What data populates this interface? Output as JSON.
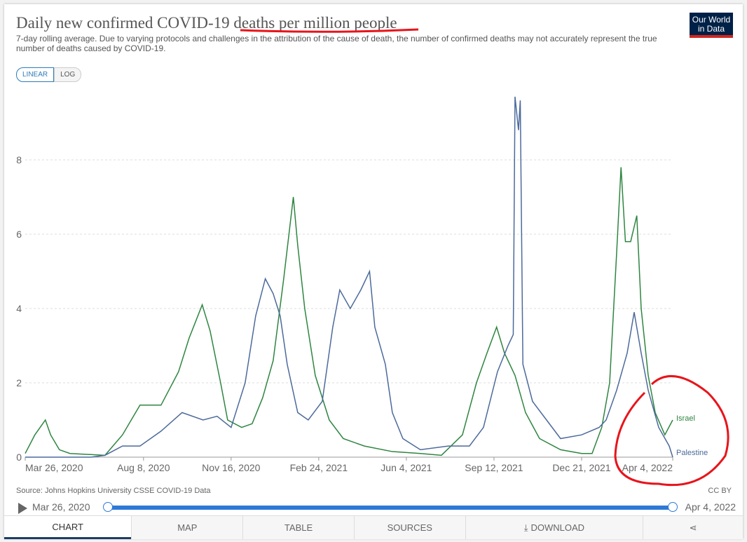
{
  "header": {
    "title_a": "Daily new confirmed COVID-19 ",
    "title_b": "deaths per million people",
    "subtitle": "7-day rolling average. Due to varying protocols and challenges in the attribution of the cause of death, the number of confirmed deaths may not accurately represent the true number of deaths caused by COVID-19.",
    "logo": "Our World in Data"
  },
  "scale": {
    "linear": "LINEAR",
    "log": "LOG"
  },
  "chart_data": {
    "type": "line",
    "title": "Daily new confirmed COVID-19 deaths per million people",
    "x_unit": "days since Mar 26, 2020",
    "xlim": [
      0,
      739
    ],
    "ylim": [
      0,
      9.8
    ],
    "yticks": [
      0,
      2,
      4,
      6,
      8
    ],
    "ytick_labels": [
      "0",
      "2",
      "4",
      "6",
      "8"
    ],
    "xticks": [
      0,
      135,
      235,
      335,
      435,
      535,
      635,
      739
    ],
    "xtick_labels": [
      "Mar 26, 2020",
      "Aug 8, 2020",
      "Nov 16, 2020",
      "Feb 24, 2021",
      "Jun 4, 2021",
      "Sep 12, 2021",
      "Dec 21, 2021",
      "Apr 4, 2022"
    ],
    "series": [
      {
        "name": "Israel",
        "color": "#2e8540",
        "points": [
          [
            0,
            0.1
          ],
          [
            11,
            0.6
          ],
          [
            23,
            1.0
          ],
          [
            29,
            0.6
          ],
          [
            39,
            0.2
          ],
          [
            51,
            0.1
          ],
          [
            91,
            0.05
          ],
          [
            111,
            0.6
          ],
          [
            131,
            1.4
          ],
          [
            155,
            1.4
          ],
          [
            175,
            2.3
          ],
          [
            187,
            3.2
          ],
          [
            202,
            4.1
          ],
          [
            211,
            3.4
          ],
          [
            223,
            2.0
          ],
          [
            231,
            1.0
          ],
          [
            247,
            0.8
          ],
          [
            259,
            0.9
          ],
          [
            271,
            1.6
          ],
          [
            283,
            2.6
          ],
          [
            295,
            4.8
          ],
          [
            306,
            7.0
          ],
          [
            311,
            5.7
          ],
          [
            319,
            4.0
          ],
          [
            331,
            2.2
          ],
          [
            347,
            1.0
          ],
          [
            363,
            0.5
          ],
          [
            387,
            0.3
          ],
          [
            419,
            0.15
          ],
          [
            451,
            0.1
          ],
          [
            475,
            0.05
          ],
          [
            499,
            0.6
          ],
          [
            515,
            2.0
          ],
          [
            527,
            2.8
          ],
          [
            538,
            3.5
          ],
          [
            547,
            2.8
          ],
          [
            559,
            2.2
          ],
          [
            571,
            1.2
          ],
          [
            587,
            0.5
          ],
          [
            611,
            0.2
          ],
          [
            635,
            0.1
          ],
          [
            647,
            0.1
          ],
          [
            658,
            0.8
          ],
          [
            667,
            2.0
          ],
          [
            675,
            5.5
          ],
          [
            680,
            7.8
          ],
          [
            685,
            5.8
          ],
          [
            691,
            5.8
          ],
          [
            698,
            6.5
          ],
          [
            703,
            4.0
          ],
          [
            711,
            2.2
          ],
          [
            719,
            1.2
          ],
          [
            730,
            0.6
          ],
          [
            739,
            1.0
          ]
        ]
      },
      {
        "name": "Palestine",
        "color": "#4c6a9c",
        "points": [
          [
            0,
            0
          ],
          [
            75,
            0
          ],
          [
            91,
            0.05
          ],
          [
            111,
            0.3
          ],
          [
            131,
            0.3
          ],
          [
            155,
            0.7
          ],
          [
            179,
            1.2
          ],
          [
            203,
            1.0
          ],
          [
            219,
            1.1
          ],
          [
            235,
            0.8
          ],
          [
            251,
            2.0
          ],
          [
            263,
            3.8
          ],
          [
            274,
            4.8
          ],
          [
            283,
            4.4
          ],
          [
            291,
            3.8
          ],
          [
            299,
            2.5
          ],
          [
            311,
            1.2
          ],
          [
            323,
            1.0
          ],
          [
            339,
            1.5
          ],
          [
            351,
            3.5
          ],
          [
            359,
            4.5
          ],
          [
            371,
            4.0
          ],
          [
            383,
            4.5
          ],
          [
            393,
            5.0
          ],
          [
            399,
            3.5
          ],
          [
            411,
            2.5
          ],
          [
            419,
            1.2
          ],
          [
            431,
            0.5
          ],
          [
            451,
            0.2
          ],
          [
            483,
            0.3
          ],
          [
            507,
            0.3
          ],
          [
            523,
            0.8
          ],
          [
            539,
            2.3
          ],
          [
            551,
            3.0
          ],
          [
            557,
            3.3
          ],
          [
            559,
            9.7
          ],
          [
            563,
            8.8
          ],
          [
            565,
            9.6
          ],
          [
            568,
            2.5
          ],
          [
            579,
            1.5
          ],
          [
            595,
            1.0
          ],
          [
            611,
            0.5
          ],
          [
            635,
            0.6
          ],
          [
            655,
            0.8
          ],
          [
            663,
            1.0
          ],
          [
            675,
            1.8
          ],
          [
            687,
            2.8
          ],
          [
            695,
            3.9
          ],
          [
            703,
            2.8
          ],
          [
            711,
            1.8
          ],
          [
            723,
            0.8
          ],
          [
            735,
            0.3
          ],
          [
            739,
            0.0
          ]
        ]
      }
    ]
  },
  "footer": {
    "source": "Source: Johns Hopkins University CSSE COVID-19 Data",
    "license": "CC BY"
  },
  "timeline": {
    "start": "Mar 26, 2020",
    "end": "Apr 4, 2022"
  },
  "tabs": [
    "CHART",
    "MAP",
    "TABLE",
    "SOURCES",
    "DOWNLOAD"
  ]
}
